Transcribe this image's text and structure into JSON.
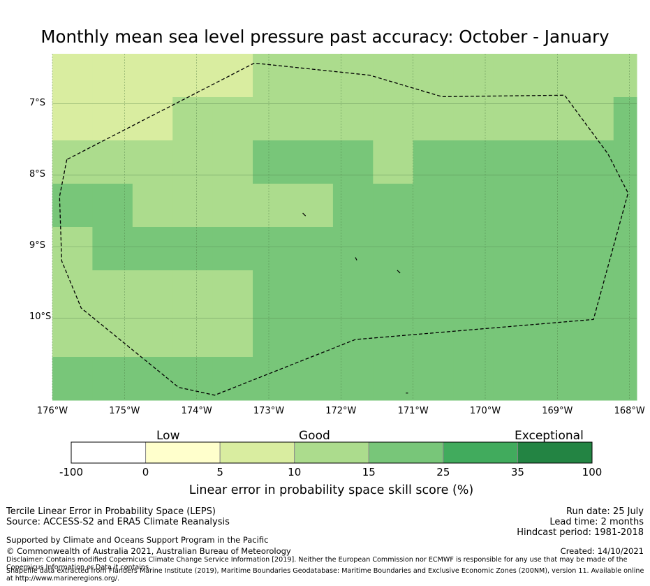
{
  "title": "Monthly mean sea level pressure past accuracy: October - January",
  "map": {
    "lon_ticks": [
      "176°W",
      "175°W",
      "174°W",
      "173°W",
      "172°W",
      "171°W",
      "170°W",
      "169°W",
      "168°W"
    ],
    "lat_ticks": [
      "7°S",
      "8°S",
      "9°S",
      "10°S"
    ],
    "lon_range": [
      -176,
      -167.9
    ],
    "lat_range": [
      -11.15,
      -6.3
    ],
    "cell_size_deg": 0.5556,
    "categories": {
      "c5": "#d9eda0",
      "c10": "#acdc8d",
      "c15": "#78c679"
    },
    "rows_top_to_bottom": [
      [
        "c5",
        "c5",
        "c5",
        "c5",
        "c5",
        "c10",
        "c10",
        "c10",
        "c10",
        "c10",
        "c10",
        "c10",
        "c10",
        "c10",
        "c10"
      ],
      [
        "c5",
        "c5",
        "c5",
        "c10",
        "c10",
        "c10",
        "c10",
        "c10",
        "c10",
        "c10",
        "c10",
        "c10",
        "c10",
        "c10",
        "c15"
      ],
      [
        "c10",
        "c10",
        "c10",
        "c10",
        "c10",
        "c15",
        "c15",
        "c15",
        "c10",
        "c15",
        "c15",
        "c15",
        "c15",
        "c15",
        "c15"
      ],
      [
        "c15",
        "c15",
        "c10",
        "c10",
        "c10",
        "c10",
        "c10",
        "c15",
        "c15",
        "c15",
        "c15",
        "c15",
        "c15",
        "c15",
        "c15"
      ],
      [
        "c10",
        "c15",
        "c15",
        "c15",
        "c15",
        "c15",
        "c15",
        "c15",
        "c15",
        "c15",
        "c15",
        "c15",
        "c15",
        "c15",
        "c15"
      ],
      [
        "c10",
        "c10",
        "c10",
        "c10",
        "c10",
        "c15",
        "c15",
        "c15",
        "c15",
        "c15",
        "c15",
        "c15",
        "c15",
        "c15",
        "c15"
      ],
      [
        "c10",
        "c10",
        "c10",
        "c10",
        "c10",
        "c15",
        "c15",
        "c15",
        "c15",
        "c15",
        "c15",
        "c15",
        "c15",
        "c15",
        "c15"
      ],
      [
        "c15",
        "c15",
        "c15",
        "c15",
        "c15",
        "c15",
        "c15",
        "c15",
        "c15",
        "c15",
        "c15",
        "c15",
        "c15",
        "c15",
        "c15"
      ]
    ],
    "eez_boundary": [
      [
        -175.8,
        -7.78
      ],
      [
        -175.9,
        -8.3
      ],
      [
        -175.87,
        -9.2
      ],
      [
        -175.6,
        -9.86
      ],
      [
        -174.25,
        -10.97
      ],
      [
        -173.75,
        -11.08
      ],
      [
        -171.8,
        -10.3
      ],
      [
        -168.5,
        -10.02
      ],
      [
        -168.02,
        -8.25
      ],
      [
        -168.3,
        -7.7
      ],
      [
        -168.9,
        -6.88
      ],
      [
        -170.6,
        -6.9
      ],
      [
        -171.6,
        -6.6
      ],
      [
        -173.2,
        -6.43
      ],
      [
        -175.8,
        -7.78
      ]
    ],
    "islands": [
      [
        [
          -172.53,
          -8.53
        ],
        [
          -172.49,
          -8.57
        ]
      ],
      [
        [
          -171.8,
          -9.15
        ],
        [
          -171.78,
          -9.19
        ]
      ],
      [
        [
          -171.22,
          -9.33
        ],
        [
          -171.18,
          -9.37
        ]
      ],
      [
        [
          -171.1,
          -11.05
        ],
        [
          -171.07,
          -11.05
        ]
      ]
    ]
  },
  "colorbar": {
    "category_words": [
      "Low",
      "Good",
      "Exceptional"
    ],
    "tick_labels": [
      "-100",
      "0",
      "5",
      "10",
      "15",
      "25",
      "35",
      "100"
    ],
    "colors": [
      "#ffffff",
      "#ffffcc",
      "#d9eda0",
      "#acdc8d",
      "#78c679",
      "#41ab5d",
      "#238443"
    ],
    "label": "Linear error in probability space skill score (%)"
  },
  "footer": {
    "left": [
      "Tercile Linear Error in Probability Space (LEPS)",
      "Source: ACCESS-S2 and ERA5 Climate Reanalysis"
    ],
    "support": "Supported by Climate and Oceans Support Program in the Pacific",
    "copyright": "© Commonwealth of Australia 2021, Australian Bureau of Meteorology",
    "right": [
      "Run date: 25 July",
      "Lead time: 2 months",
      "Hindcast period: 1981-2018"
    ],
    "created": "Created: 14/10/2021",
    "disclaimer": "Disclaimer: Contains modified Copernicus Climate Change Service Information [2019]. Neither the European Commission nor ECMWF is responsible for any use that may be made of the Copernicus Information or Data it contains.",
    "shapefile": "Shapefile data extracted from Flanders Marine Institute (2019), Maritime Boundaries Geodatabase: Maritime Boundaries and Exclusive Economic Zones (200NM), version 11. Available online at http://www.marineregions.org/."
  }
}
